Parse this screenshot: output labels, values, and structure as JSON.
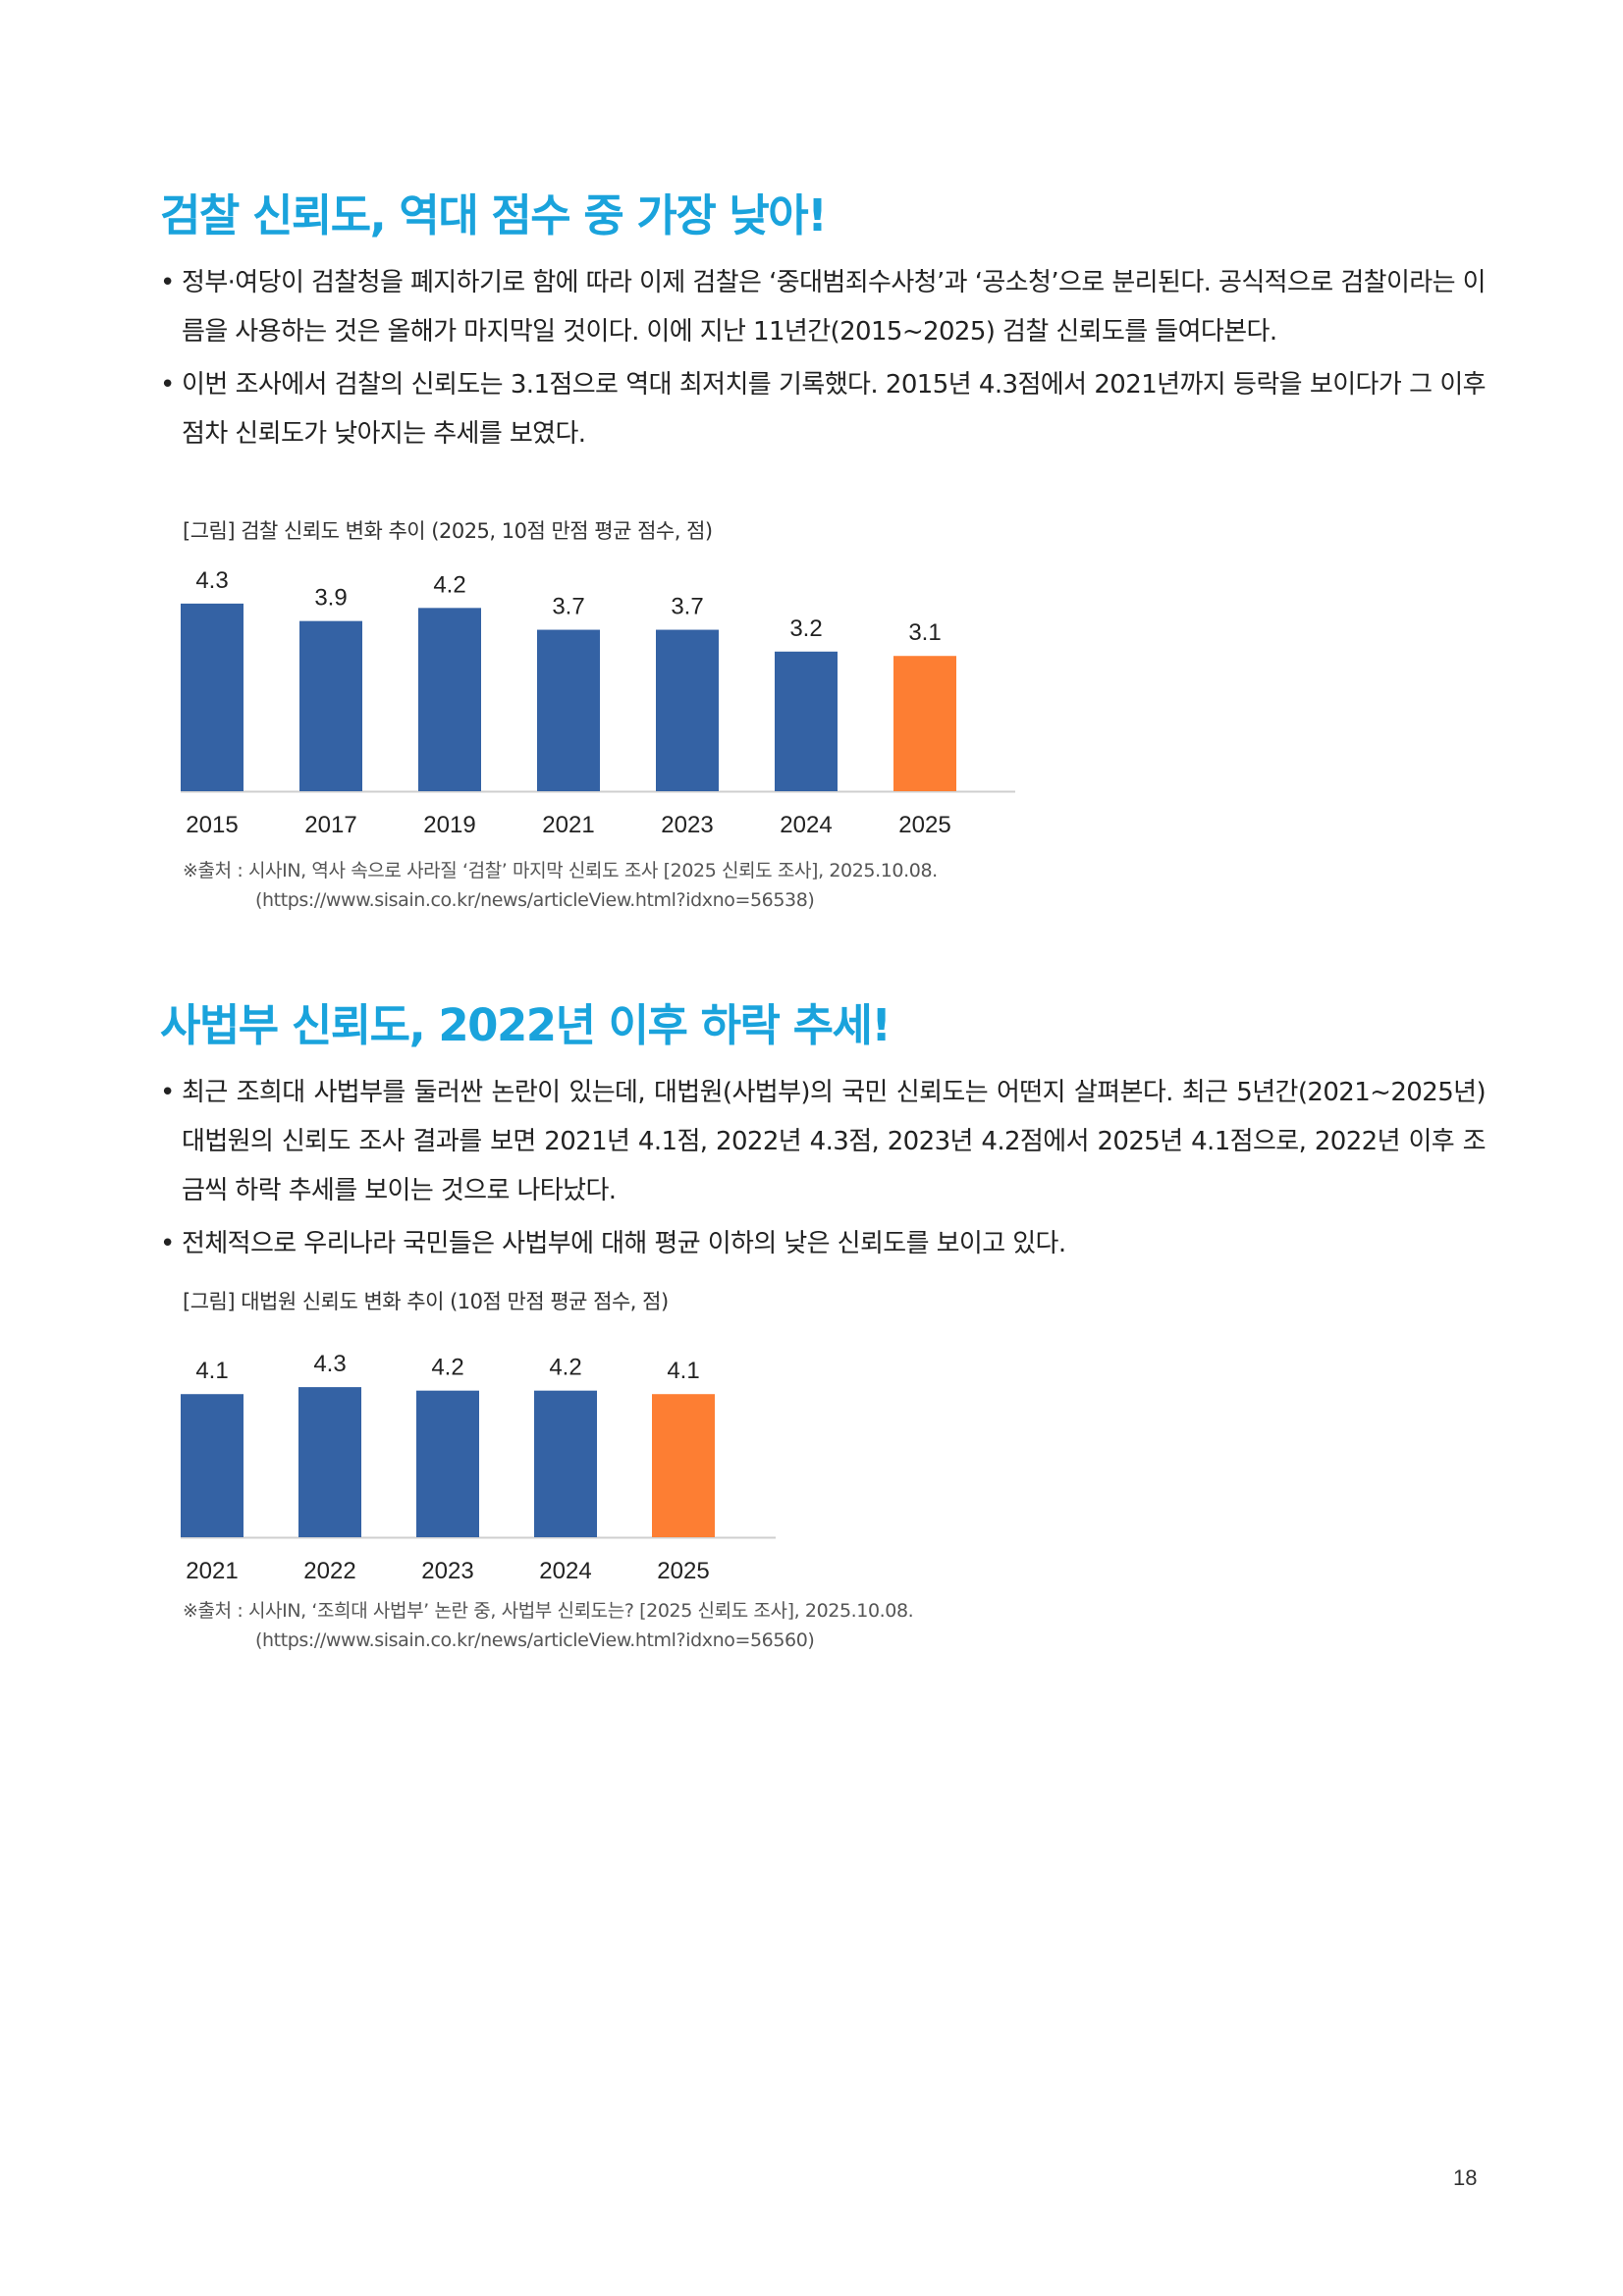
{
  "sections": [
    {
      "title": "검찰 신뢰도, 역대 점수 중 가장 낮아!",
      "bullets": [
        "정부·여당이 검찰청을 폐지하기로 함에 따라 이제 검찰은 ‘중대범죄수사청’과 ‘공소청’으로 분리된다. 공식적으로 검찰이라는 이름을 사용하는 것은 올해가 마지막일 것이다. 이에 지난 11년간(2015~2025) 검찰 신뢰도를 들여다본다.",
        "이번 조사에서 검찰의 신뢰도는 3.1점으로 역대 최저치를 기록했다. 2015년 4.3점에서 2021년까지 등락을 보이다가 그 이후 점차 신뢰도가 낮아지는 추세를 보였다."
      ],
      "figure_caption": "[그림] 검찰 신뢰도 변화 추이 (2025, 10점 만점 평균 점수, 점)",
      "source": "※출처 : 시사IN, 역사 속으로 사라질 ‘검찰’ 마지막 신뢰도 조사 [2025 신뢰도 조사], 2025.10.08.",
      "source_url": "(https://www.sisain.co.kr/news/articleView.html?idxno=56538)"
    },
    {
      "title": "사법부 신뢰도, 2022년 이후 하락 추세!",
      "bullets": [
        "최근 조희대 사법부를 둘러싼 논란이 있는데, 대법원(사법부)의 국민 신뢰도는 어떤지 살펴본다. 최근 5년간(2021~2025년) 대법원의 신뢰도 조사 결과를 보면 2021년 4.1점, 2022년 4.3점, 2023년 4.2점에서 2025년 4.1점으로, 2022년 이후 조금씩 하락 추세를 보이는 것으로 나타났다.",
        "전체적으로 우리나라 국민들은 사법부에 대해 평균 이하의 낮은 신뢰도를 보이고 있다."
      ],
      "figure_caption": "[그림] 대법원 신뢰도 변화 추이 (10점 만점 평균 점수, 점)",
      "source": "※출처 : 시사IN, ‘조희대 사법부’ 논란 중, 사법부 신뢰도는? [2025 신뢰도 조사], 2025.10.08.",
      "source_url": "(https://www.sisain.co.kr/news/articleView.html?idxno=56560)"
    }
  ],
  "chart_data": [
    {
      "type": "bar",
      "categories": [
        "2015",
        "2017",
        "2019",
        "2021",
        "2023",
        "2024",
        "2025"
      ],
      "values": [
        4.3,
        3.9,
        4.2,
        3.7,
        3.7,
        3.2,
        3.1
      ],
      "value_labels": [
        "4.3",
        "3.9",
        "4.2",
        "3.7",
        "3.7",
        "3.2",
        "3.1"
      ],
      "colors": [
        "#3462a4",
        "#3462a4",
        "#3462a4",
        "#3462a4",
        "#3462a4",
        "#3462a4",
        "#fd7e33"
      ],
      "ylim": [
        0,
        4.5
      ],
      "grid": false,
      "legend": "none"
    },
    {
      "type": "bar",
      "categories": [
        "2021",
        "2022",
        "2023",
        "2024",
        "2025"
      ],
      "values": [
        4.1,
        4.3,
        4.2,
        4.2,
        4.1
      ],
      "value_labels": [
        "4.1",
        "4.3",
        "4.2",
        "4.2",
        "4.1"
      ],
      "colors": [
        "#3462a4",
        "#3462a4",
        "#3462a4",
        "#3462a4",
        "#fd7e33"
      ],
      "ylim": [
        0,
        4.5
      ],
      "grid": false,
      "legend": "none"
    }
  ],
  "page_number": "18"
}
